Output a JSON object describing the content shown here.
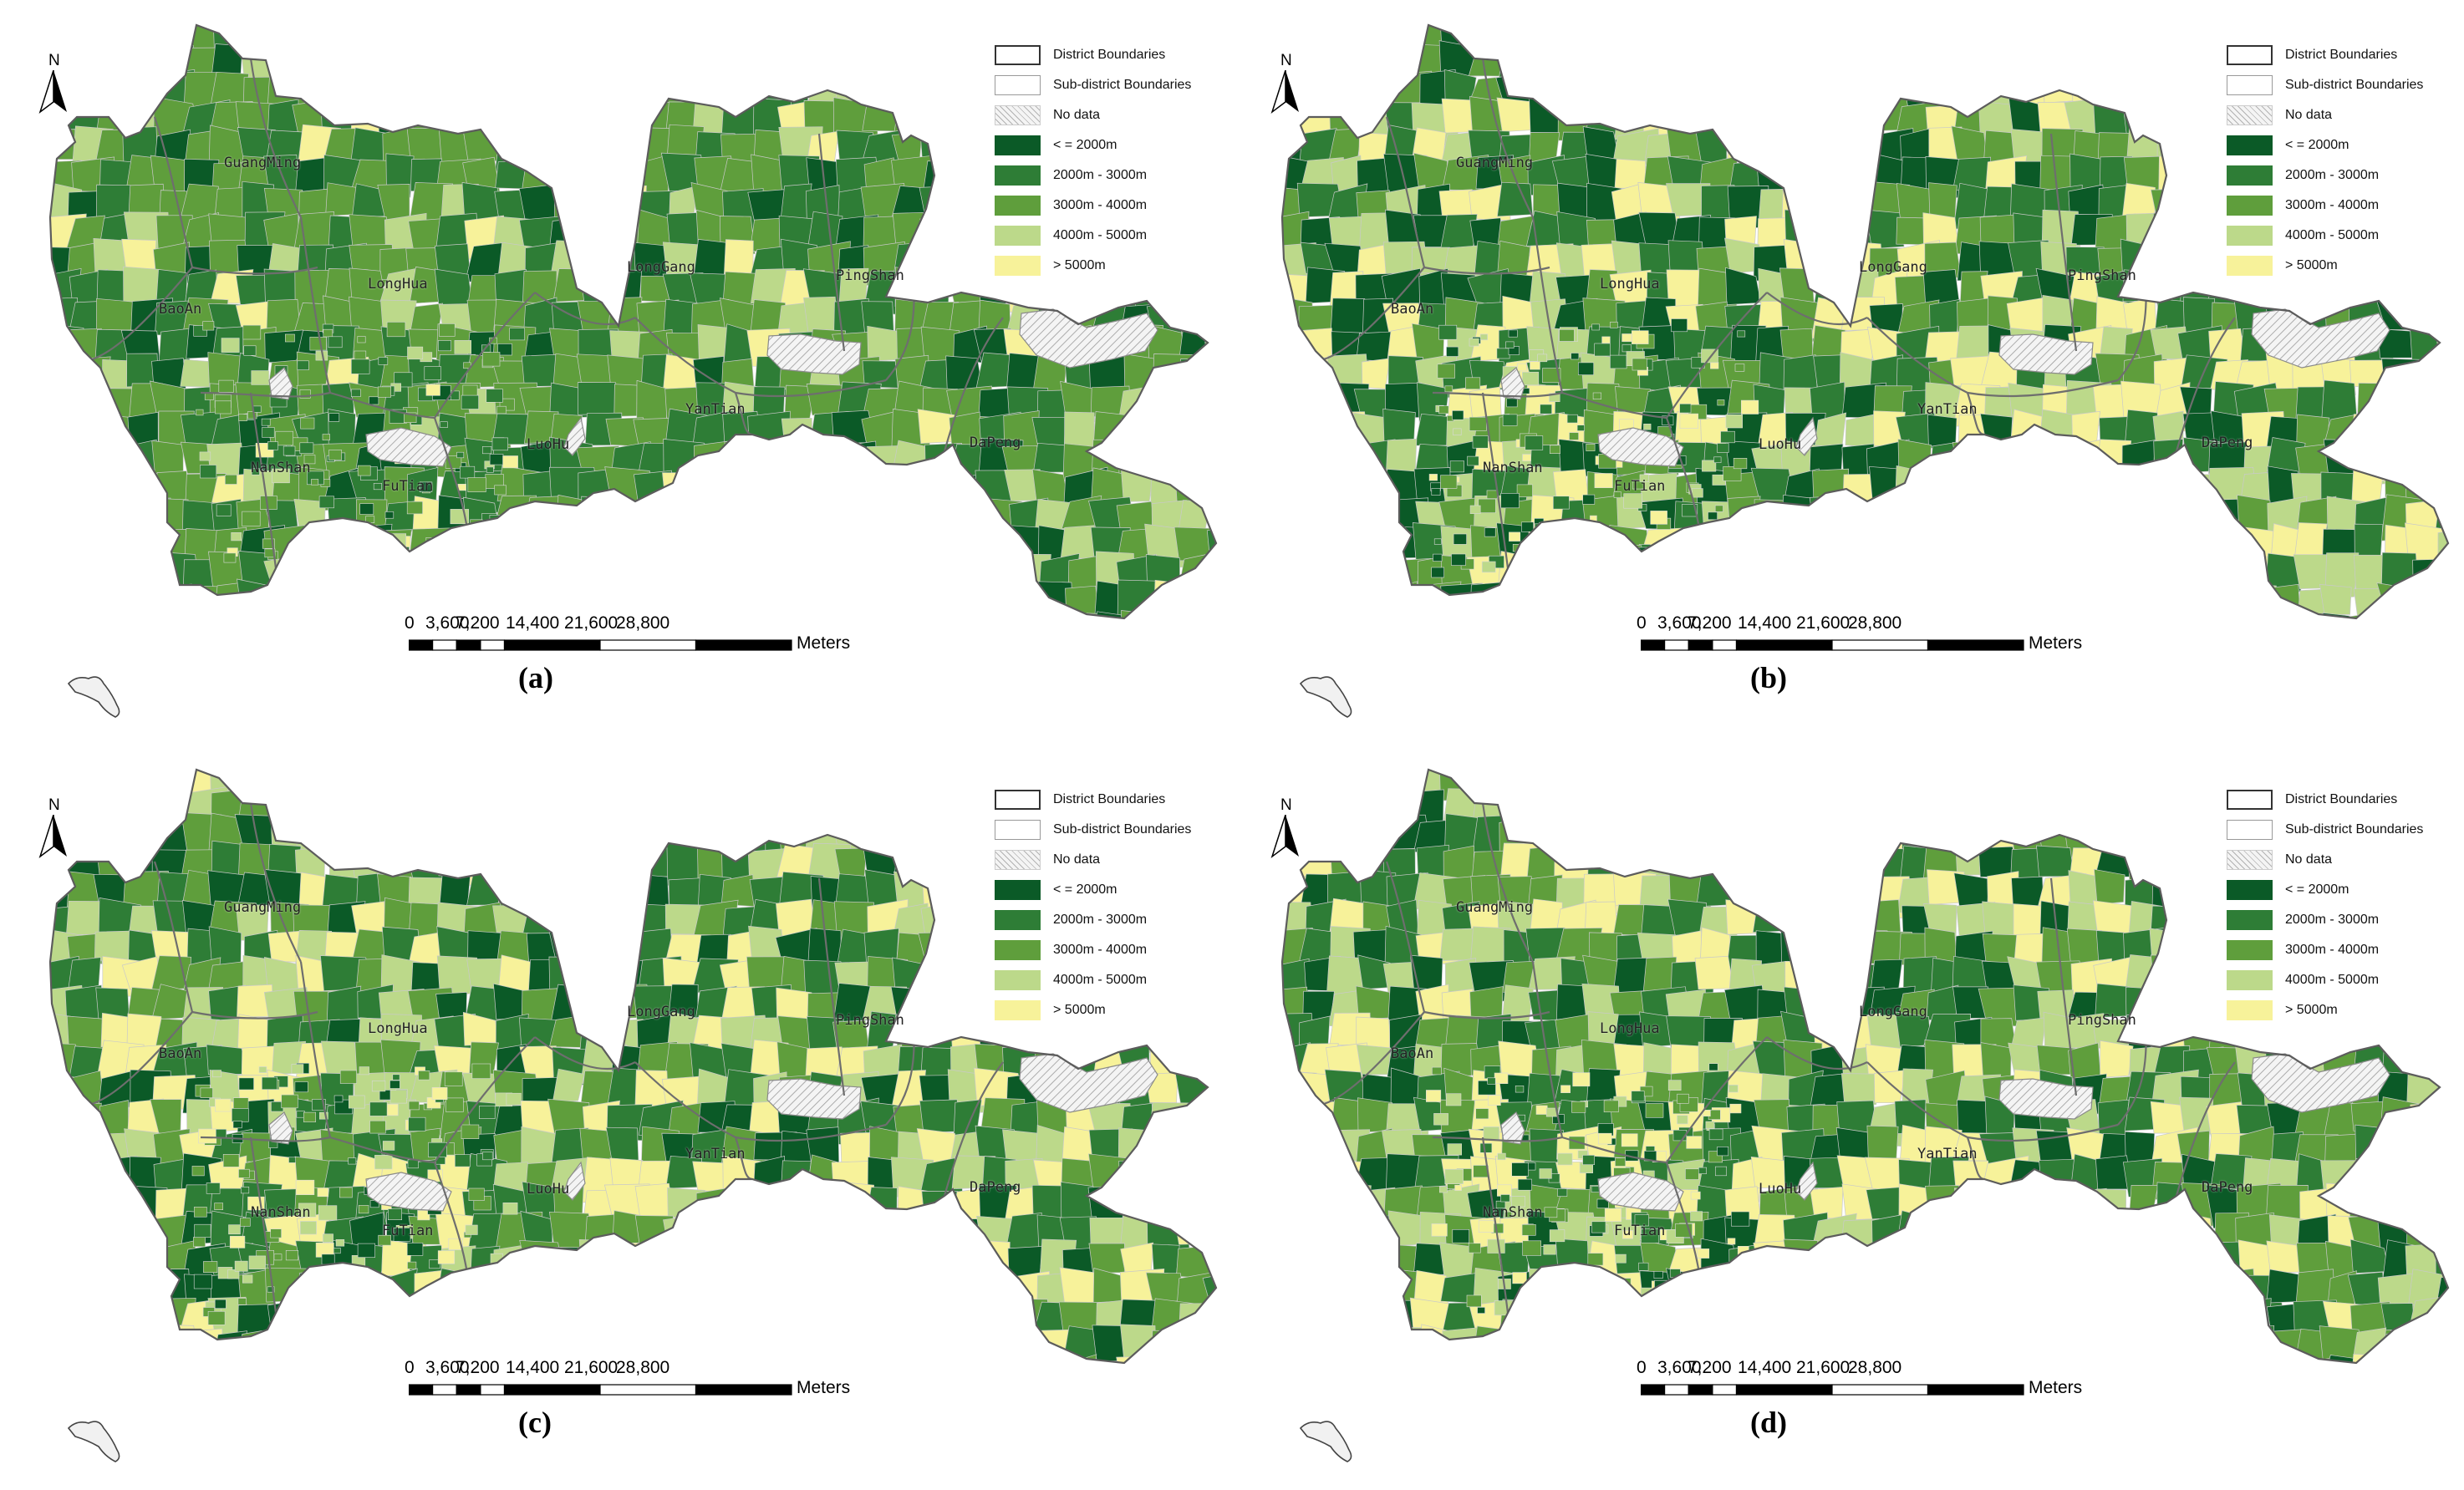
{
  "legend": {
    "items": [
      {
        "label": "District Boundaries",
        "kind": "boundary-district"
      },
      {
        "label": "Sub-district Boundaries",
        "kind": "boundary-subdistrict"
      },
      {
        "label": "No data",
        "kind": "nodata"
      },
      {
        "label": "< = 2000m",
        "color": "#0b5a27"
      },
      {
        "label": "2000m - 3000m",
        "color": "#2e7d36"
      },
      {
        "label": "3000m - 4000m",
        "color": "#5f9e3c"
      },
      {
        "label": "4000m - 5000m",
        "color": "#bcd98a"
      },
      {
        "label": "> 5000m",
        "color": "#f7f29a"
      }
    ]
  },
  "north_arrow": {
    "letter": "N"
  },
  "scalebar": {
    "ticks": [
      "0",
      "3,600",
      "7,200",
      "14,400",
      "21,600",
      "28,800"
    ],
    "units": "Meters"
  },
  "district_labels": [
    "GuangMing",
    "BaoAn",
    "LongHua",
    "LongGang",
    "PingShan",
    "YanTian",
    "DaPeng",
    "NanShan",
    "FuTian",
    "LuoHu"
  ],
  "panels": [
    {
      "label": "(a)",
      "seed": 11,
      "bias": [
        0.12,
        0.32,
        0.42,
        0.1,
        0.04
      ]
    },
    {
      "label": "(b)",
      "seed": 23,
      "bias": [
        0.18,
        0.22,
        0.22,
        0.18,
        0.2
      ]
    },
    {
      "label": "(c)",
      "seed": 37,
      "bias": [
        0.14,
        0.24,
        0.28,
        0.18,
        0.16
      ]
    },
    {
      "label": "(d)",
      "seed": 53,
      "bias": [
        0.16,
        0.22,
        0.24,
        0.18,
        0.2
      ]
    }
  ]
}
